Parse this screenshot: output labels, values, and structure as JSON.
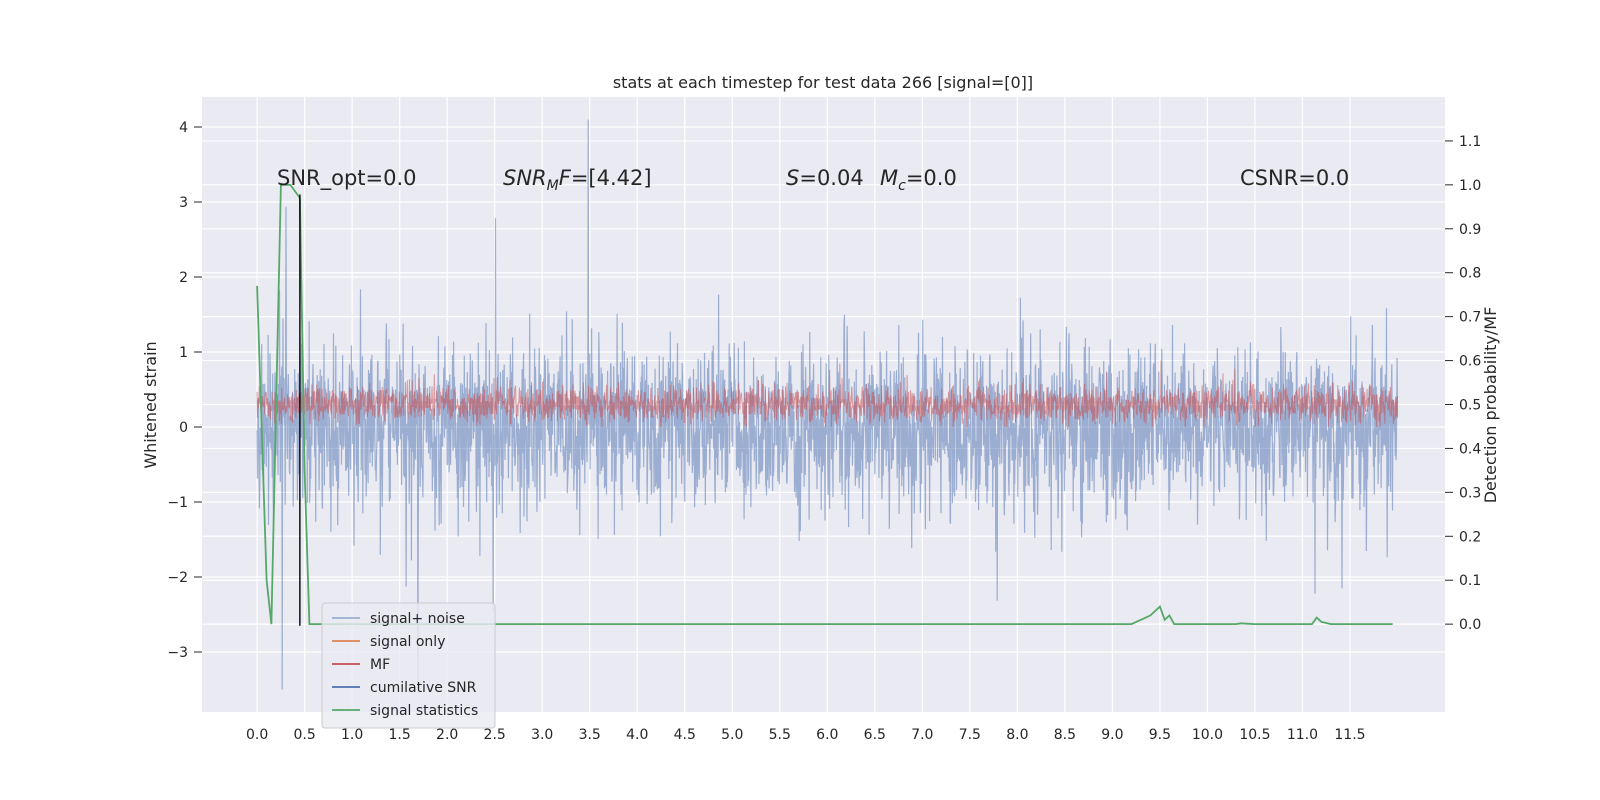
{
  "chart_data": {
    "type": "line",
    "title": "stats at each timestep for test data 266 [signal=[0]]",
    "xlabel": "",
    "ylabel_left": "Whitened strain",
    "ylabel_right": "Detection probability/MF",
    "xlim": [
      -0.58,
      12.5
    ],
    "ylim_left": [
      -3.8,
      4.4
    ],
    "ylim_right": [
      -0.2,
      1.2
    ],
    "x_ticks": [
      0.0,
      0.5,
      1.0,
      1.5,
      2.0,
      2.5,
      3.0,
      3.5,
      4.0,
      4.5,
      5.0,
      5.5,
      6.0,
      6.5,
      7.0,
      7.5,
      8.0,
      8.5,
      9.0,
      9.5,
      10.0,
      10.5,
      11.0,
      11.5
    ],
    "x_tick_labels": [
      "0.0",
      "0.5",
      "1.0",
      "1.5",
      "2.0",
      "2.5",
      "3.0",
      "3.5",
      "4.0",
      "4.5",
      "5.0",
      "5.5",
      "6.0",
      "6.5",
      "7.0",
      "7.5",
      "8.0",
      "8.5",
      "9.0",
      "9.5",
      "10.0",
      "10.5",
      "11.0",
      "11.5"
    ],
    "y_left_ticks": [
      -3,
      -2,
      -1,
      0,
      1,
      2,
      3,
      4
    ],
    "y_left_tick_labels": [
      "−3",
      "−2",
      "−1",
      "0",
      "1",
      "2",
      "3",
      "4"
    ],
    "y_right_ticks": [
      0.0,
      0.1,
      0.2,
      0.3,
      0.4,
      0.5,
      0.6,
      0.7,
      0.8,
      0.9,
      1.0,
      1.1
    ],
    "y_right_tick_labels": [
      "0.0",
      "0.1",
      "0.2",
      "0.3",
      "0.4",
      "0.5",
      "0.6",
      "0.7",
      "0.8",
      "0.9",
      "1.0",
      "1.1"
    ],
    "grid": true,
    "legend_location": "lower left",
    "annotations": [
      "SNR_opt=0.0",
      "SNR_MF=[4.42]",
      "S=0.04",
      "M_c=0.0",
      "CSNR=0.0"
    ],
    "series": [
      {
        "name": "signal+ noise",
        "color": "#4c72b0",
        "axis": "left",
        "kind": "noise",
        "x_range": [
          0.0,
          12.0
        ],
        "typical_range": [
          -1.5,
          1.5
        ],
        "extremes": [
          -3.5,
          4.1
        ]
      },
      {
        "name": "signal only",
        "color": "#dd8452",
        "axis": "left",
        "kind": "flat",
        "value": 0.0
      },
      {
        "name": "MF",
        "color": "#c44e52",
        "axis": "left",
        "kind": "band",
        "x_range": [
          0.0,
          12.0
        ],
        "typical_range": [
          0.0,
          0.6
        ],
        "extremes": [
          0.0,
          0.95
        ]
      },
      {
        "name": "cumilative SNR",
        "color": "#4c72b0",
        "axis": "left",
        "kind": "flat",
        "value": 0.0
      },
      {
        "name": "signal statistics",
        "color": "#55a868",
        "axis": "right",
        "x": [
          0.0,
          0.1,
          0.15,
          0.25,
          0.35,
          0.45,
          0.5,
          0.55,
          1.0,
          2.0,
          3.0,
          3.8,
          4.5,
          5.5,
          6.5,
          7.5,
          8.0,
          8.5,
          9.0,
          9.2,
          9.3,
          9.4,
          9.5,
          9.55,
          9.6,
          9.65,
          9.7,
          10.0,
          10.3,
          10.35,
          10.5,
          11.0,
          11.1,
          11.15,
          11.2,
          11.3,
          11.95
        ],
        "y": [
          0.77,
          0.1,
          0.0,
          1.0,
          1.0,
          0.97,
          0.35,
          0.0,
          0.0,
          0.0,
          0.0,
          0.0,
          0.0,
          0.0,
          0.0,
          0.0,
          0.0,
          0.0,
          0.0,
          0.0,
          0.01,
          0.02,
          0.04,
          0.01,
          0.02,
          0.0,
          0.0,
          0.0,
          0.0,
          0.002,
          0.0,
          0.0,
          0.0,
          0.015,
          0.005,
          0.0,
          0.0
        ]
      }
    ],
    "markers": [
      {
        "name": "black vertical line",
        "x": 0.45,
        "y_left_range": [
          -2.65,
          3.1
        ],
        "color": "#000000"
      }
    ]
  }
}
